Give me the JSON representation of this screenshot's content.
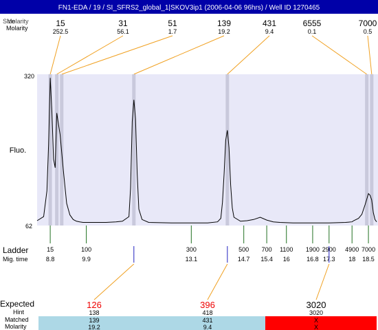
{
  "header": {
    "title": "FN1-EDA / 19 / SI_SFRS2_global_1|SKOV3ip1 (2006-04-06 96hrs) / Well ID 1270465",
    "row1_label": "Size",
    "row2_label": "Molarity"
  },
  "peaks": [
    {
      "size": "15",
      "molarity": "252.5"
    },
    {
      "size": "31",
      "molarity": "56.1"
    },
    {
      "size": "51",
      "molarity": "1.7"
    },
    {
      "size": "139",
      "molarity": "19.2"
    },
    {
      "size": "431",
      "molarity": "9.4"
    },
    {
      "size": "6555",
      "molarity": "0.1"
    },
    {
      "size": "7000",
      "molarity": "0.5"
    }
  ],
  "axis": {
    "y_label": "Fluo.",
    "y_top": "320",
    "y_bottom": "62",
    "ladder_label": "Ladder",
    "migtime_label": "Mig. time"
  },
  "ladder": [
    {
      "size": "15",
      "time": "8.8"
    },
    {
      "size": "100",
      "time": "9.9"
    },
    {
      "size": "300",
      "time": "13.1"
    },
    {
      "size": "500",
      "time": "14.7"
    },
    {
      "size": "700",
      "time": "15.4"
    },
    {
      "size": "1100",
      "time": "16"
    },
    {
      "size": "1900",
      "time": "16.8"
    },
    {
      "size": "2900",
      "time": "17.3"
    },
    {
      "size": "4900",
      "time": "18"
    },
    {
      "size": "7000",
      "time": "18.5"
    }
  ],
  "expected_section": {
    "expected_label": "Expected",
    "hint_label": "Hint",
    "matched_label": "Matched",
    "molarity_label": "Molarity",
    "columns": [
      {
        "expected": "126",
        "hint": "138",
        "matched": "139",
        "molarity": "19.2",
        "status": "matched"
      },
      {
        "expected": "396",
        "hint": "418",
        "matched": "431",
        "molarity": "9.4",
        "status": "matched"
      },
      {
        "expected": "3020",
        "hint": "3020",
        "matched": "X",
        "molarity": "X",
        "status": "missing"
      }
    ]
  },
  "colors": {
    "header_bg": "#0000a8",
    "plot_bg": "#e8e8f8",
    "band": "#c9c9dc",
    "leader": "#f0a020",
    "ladder_tick": "#207020",
    "blue_tick": "#2020c0",
    "expected_red": "#ee0000",
    "matched_bg": "#add8e6",
    "missing_bg": "#ff0000"
  },
  "chart_data": {
    "type": "line",
    "title": "FN1-EDA / 19 / SI_SFRS2_global_1|SKOV3ip1 (2006-04-06 96hrs) / Well ID 1270465",
    "xlabel": "Mig. time",
    "ylabel": "Fluo.",
    "xlim": [
      8.4,
      18.75
    ],
    "ylim": [
      62,
      320
    ],
    "x": [
      8.4,
      8.6,
      8.7,
      8.75,
      8.8,
      8.85,
      8.9,
      8.95,
      9.0,
      9.1,
      9.2,
      9.3,
      9.4,
      9.5,
      9.6,
      9.7,
      9.8,
      9.9,
      10.0,
      10.2,
      10.5,
      10.8,
      11.0,
      11.2,
      11.25,
      11.3,
      11.35,
      11.4,
      11.45,
      11.5,
      11.6,
      11.8,
      12.5,
      13.1,
      13.6,
      13.9,
      14.0,
      14.05,
      14.1,
      14.15,
      14.2,
      14.25,
      14.3,
      14.35,
      14.4,
      14.6,
      14.8,
      15.0,
      15.2,
      15.4,
      15.6,
      15.8,
      16.2,
      16.8,
      17.3,
      17.8,
      18.0,
      18.05,
      18.2,
      18.3,
      18.4,
      18.5,
      18.55,
      18.6,
      18.65,
      18.7,
      18.75
    ],
    "y": [
      68,
      75,
      120,
      200,
      316,
      258,
      175,
      160,
      255,
      218,
      155,
      98,
      78,
      70,
      67,
      66,
      65,
      65,
      65,
      65,
      65,
      66,
      67,
      75,
      125,
      240,
      278,
      245,
      150,
      88,
      70,
      65,
      64,
      64,
      64,
      66,
      72,
      100,
      150,
      208,
      225,
      195,
      130,
      90,
      74,
      67,
      68,
      70,
      74,
      69,
      66,
      65,
      64,
      64,
      64,
      65,
      66,
      68,
      72,
      79,
      96,
      115,
      112,
      104,
      82,
      70,
      66
    ],
    "grid": false,
    "legend": "none"
  }
}
